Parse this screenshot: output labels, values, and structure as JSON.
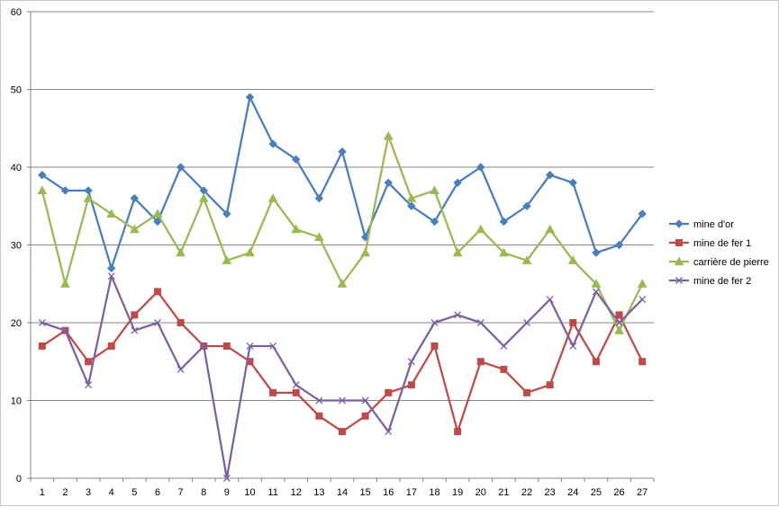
{
  "chart_data": {
    "type": "line",
    "title": "",
    "xlabel": "",
    "ylabel": "",
    "ylim": [
      0,
      60
    ],
    "yticks": [
      0,
      10,
      20,
      30,
      40,
      50,
      60
    ],
    "grid": "horizontal",
    "legend_position": "right",
    "categories": [
      "1",
      "2",
      "3",
      "4",
      "5",
      "6",
      "7",
      "8",
      "9",
      "10",
      "11",
      "12",
      "13",
      "14",
      "15",
      "16",
      "17",
      "18",
      "19",
      "20",
      "21",
      "22",
      "23",
      "24",
      "25",
      "26",
      "27"
    ],
    "series": [
      {
        "name": "mine d'or",
        "color": "#4a7ebb",
        "marker": "diamond",
        "values": [
          39,
          37,
          37,
          27,
          36,
          33,
          40,
          37,
          34,
          49,
          43,
          41,
          36,
          42,
          31,
          38,
          35,
          33,
          38,
          40,
          33,
          35,
          39,
          38,
          29,
          30,
          34
        ]
      },
      {
        "name": "mine de fer 1",
        "color": "#be4b48",
        "marker": "square",
        "values": [
          17,
          19,
          15,
          17,
          21,
          24,
          20,
          17,
          17,
          15,
          11,
          11,
          8,
          6,
          8,
          11,
          12,
          17,
          6,
          15,
          14,
          11,
          12,
          20,
          15,
          21,
          15
        ]
      },
      {
        "name": "carrière de pierre",
        "color": "#98b954",
        "marker": "triangle",
        "values": [
          37,
          25,
          36,
          34,
          32,
          34,
          29,
          36,
          28,
          29,
          36,
          32,
          31,
          25,
          29,
          44,
          36,
          37,
          29,
          32,
          29,
          28,
          32,
          28,
          25,
          19,
          25
        ]
      },
      {
        "name": "mine de fer 2",
        "color": "#7d60a0",
        "marker": "x",
        "values": [
          20,
          19,
          12,
          26,
          19,
          20,
          14,
          17,
          0,
          17,
          17,
          12,
          10,
          10,
          10,
          6,
          15,
          20,
          21,
          20,
          17,
          20,
          23,
          17,
          24,
          20,
          23
        ]
      }
    ]
  }
}
